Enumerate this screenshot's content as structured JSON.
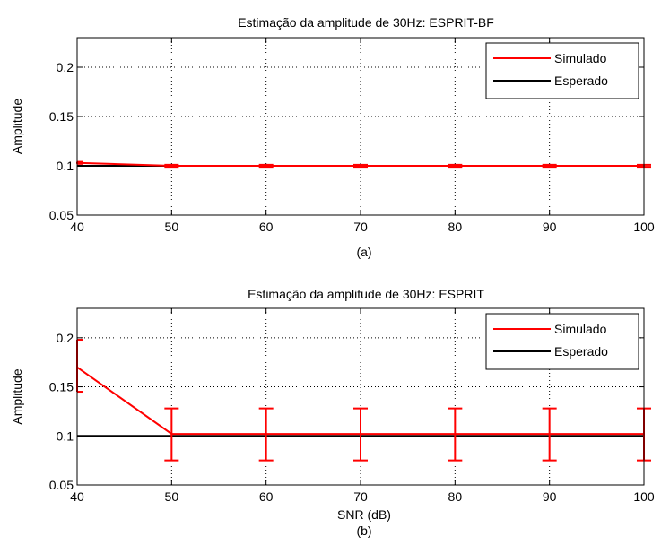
{
  "colors": {
    "simulado": "#ff0000",
    "esperado": "#000000",
    "grid": "#000000",
    "axes_bg": "#ffffff"
  },
  "chart_data": [
    {
      "type": "line",
      "title": "Estimação da amplitude de 30Hz: ESPRIT-BF",
      "xlabel": "",
      "ylabel": "Amplitude",
      "sublabel": "(a)",
      "xlim": [
        40,
        100
      ],
      "ylim": [
        0.05,
        0.23
      ],
      "xticks": [
        40,
        50,
        60,
        70,
        80,
        90,
        100
      ],
      "yticks": [
        0.05,
        0.1,
        0.15,
        0.2
      ],
      "xtick_labels": [
        "40",
        "50",
        "60",
        "70",
        "80",
        "90",
        "100"
      ],
      "ytick_labels": [
        "0.05",
        "0.1",
        "0.15",
        "0.2"
      ],
      "grid": true,
      "legend_position": "top-right",
      "series": [
        {
          "name": "Simulado",
          "x": [
            40,
            50,
            60,
            70,
            80,
            90,
            100
          ],
          "y": [
            0.103,
            0.1,
            0.1,
            0.1,
            0.1,
            0.1,
            0.1
          ],
          "err_low": [
            0.102,
            0.099,
            0.099,
            0.099,
            0.099,
            0.099,
            0.099
          ],
          "err_high": [
            0.104,
            0.101,
            0.101,
            0.101,
            0.101,
            0.101,
            0.101
          ]
        },
        {
          "name": "Esperado",
          "x": [
            40,
            100
          ],
          "y": [
            0.1,
            0.1
          ]
        }
      ]
    },
    {
      "type": "line",
      "title": "Estimação da amplitude de 30Hz: ESPRIT",
      "xlabel": "SNR (dB)",
      "ylabel": "Amplitude",
      "sublabel": "(b)",
      "xlim": [
        40,
        100
      ],
      "ylim": [
        0.05,
        0.23
      ],
      "xticks": [
        40,
        50,
        60,
        70,
        80,
        90,
        100
      ],
      "yticks": [
        0.05,
        0.1,
        0.15,
        0.2
      ],
      "xtick_labels": [
        "40",
        "50",
        "60",
        "70",
        "80",
        "90",
        "100"
      ],
      "ytick_labels": [
        "0.05",
        "0.1",
        "0.15",
        "0.2"
      ],
      "grid": true,
      "legend_position": "top-right",
      "series": [
        {
          "name": "Simulado",
          "x": [
            40,
            50,
            60,
            70,
            80,
            90,
            100
          ],
          "y": [
            0.17,
            0.102,
            0.102,
            0.102,
            0.102,
            0.102,
            0.102
          ],
          "err_low": [
            0.145,
            0.075,
            0.075,
            0.075,
            0.075,
            0.075,
            0.075
          ],
          "err_high": [
            0.198,
            0.128,
            0.128,
            0.128,
            0.128,
            0.128,
            0.128
          ]
        },
        {
          "name": "Esperado",
          "x": [
            40,
            100
          ],
          "y": [
            0.1,
            0.1
          ]
        }
      ]
    }
  ]
}
